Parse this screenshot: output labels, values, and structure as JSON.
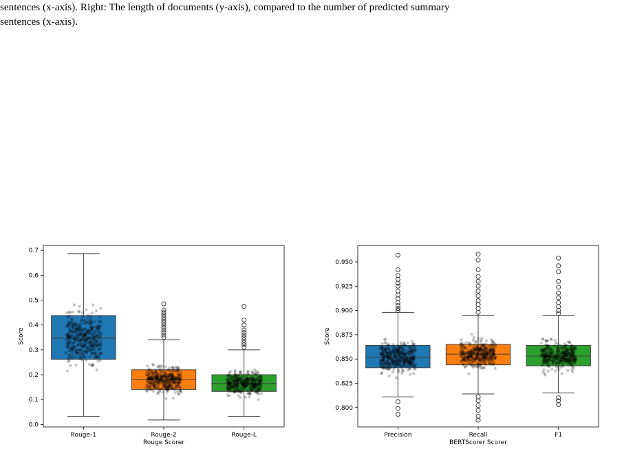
{
  "caption": {
    "line1": "sentences (x-axis).  Right: The length of documents (y-axis), compared to the number of predicted summary",
    "line2": "sentences (x-axis)."
  },
  "chart_data": [
    {
      "type": "boxplot",
      "xlabel": "Rouge Scorer",
      "ylabel": "Score",
      "ylim": [
        -0.01,
        0.72
      ],
      "yticks": [
        0.0,
        0.1,
        0.2,
        0.3,
        0.4,
        0.5,
        0.6,
        0.7
      ],
      "tick_labels": [
        "0.0",
        "0.1",
        "0.2",
        "0.3",
        "0.4",
        "0.5",
        "0.6",
        "0.7"
      ],
      "grid": false,
      "categories": [
        "Rouge-1",
        "Rouge-2",
        "Rouge-L"
      ],
      "boxes": [
        {
          "name": "Rouge-1",
          "color": "#1f77b4",
          "whislo": 0.033,
          "q1": 0.262,
          "median": 0.347,
          "q3": 0.438,
          "whishi": 0.687,
          "fliers": []
        },
        {
          "name": "Rouge-2",
          "color": "#ff7f0e",
          "whislo": 0.018,
          "q1": 0.141,
          "median": 0.18,
          "q3": 0.22,
          "whishi": 0.341,
          "fliers": [
            0.35,
            0.36,
            0.37,
            0.38,
            0.39,
            0.4,
            0.41,
            0.42,
            0.43,
            0.44,
            0.45,
            0.46,
            0.485
          ]
        },
        {
          "name": "Rouge-L",
          "color": "#2ca02c",
          "whislo": 0.033,
          "q1": 0.133,
          "median": 0.165,
          "q3": 0.2,
          "whishi": 0.3,
          "fliers": [
            0.31,
            0.32,
            0.33,
            0.34,
            0.35,
            0.36,
            0.37,
            0.38,
            0.4,
            0.42,
            0.475
          ]
        }
      ]
    },
    {
      "type": "boxplot",
      "xlabel": "BERTScorer Scorer",
      "ylabel": "Score",
      "ylim": [
        0.78,
        0.967
      ],
      "yticks": [
        0.8,
        0.825,
        0.85,
        0.875,
        0.9,
        0.925,
        0.95
      ],
      "tick_labels": [
        "0.800",
        "0.825",
        "0.850",
        "0.875",
        "0.900",
        "0.925",
        "0.950"
      ],
      "grid": false,
      "categories": [
        "Precision",
        "Recall",
        "F1"
      ],
      "boxes": [
        {
          "name": "Precision",
          "color": "#1f77b4",
          "whislo": 0.811,
          "q1": 0.841,
          "median": 0.852,
          "q3": 0.864,
          "whishi": 0.898,
          "fliers": [
            0.793,
            0.799,
            0.806,
            0.9,
            0.902,
            0.905,
            0.908,
            0.912,
            0.916,
            0.92,
            0.925,
            0.928,
            0.932,
            0.936,
            0.942,
            0.957
          ]
        },
        {
          "name": "Recall",
          "color": "#ff7f0e",
          "whislo": 0.814,
          "q1": 0.844,
          "median": 0.855,
          "q3": 0.865,
          "whishi": 0.895,
          "fliers": [
            0.787,
            0.791,
            0.797,
            0.802,
            0.807,
            0.811,
            0.898,
            0.902,
            0.906,
            0.91,
            0.915,
            0.92,
            0.925,
            0.93,
            0.935,
            0.942,
            0.952,
            0.958
          ]
        },
        {
          "name": "F1",
          "color": "#2ca02c",
          "whislo": 0.815,
          "q1": 0.843,
          "median": 0.853,
          "q3": 0.864,
          "whishi": 0.895,
          "fliers": [
            0.803,
            0.807,
            0.81,
            0.897,
            0.9,
            0.904,
            0.908,
            0.913,
            0.918,
            0.924,
            0.93,
            0.94,
            0.946,
            0.954
          ]
        }
      ]
    }
  ]
}
